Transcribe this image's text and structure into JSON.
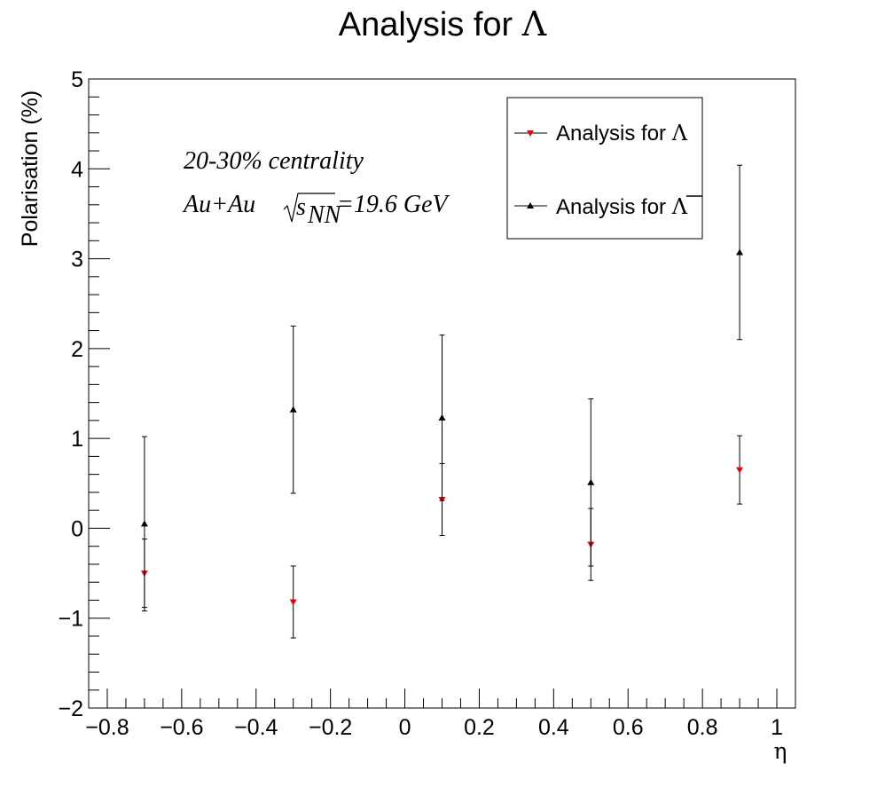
{
  "chart_data": {
    "type": "scatter",
    "title_prefix": "Analysis for ",
    "title_symbol": "Λ",
    "xlabel": "η",
    "ylabel": "Polarisation (%)",
    "xlim": [
      -0.85,
      1.05
    ],
    "ylim": [
      -2,
      5
    ],
    "x_ticks": [
      -0.8,
      -0.6,
      -0.4,
      -0.2,
      0,
      0.2,
      0.4,
      0.6,
      0.8,
      1
    ],
    "x_tick_labels": [
      "−0.8",
      "−0.6",
      "−0.4",
      "−0.2",
      "0",
      "0.2",
      "0.4",
      "0.6",
      "0.8",
      "1"
    ],
    "y_ticks": [
      -2,
      -1,
      0,
      1,
      2,
      3,
      4,
      5
    ],
    "y_tick_labels": [
      "−2",
      "−1",
      "0",
      "1",
      "2",
      "3",
      "4",
      "5"
    ],
    "annotations": {
      "centrality": "20-30% centrality",
      "system": "Au+Au",
      "sqrt_var": "s",
      "sqrt_sub": "NN",
      "energy": "=19.6 GeV"
    },
    "legend_position": "top-right",
    "series": [
      {
        "name_prefix": "Analysis for ",
        "name_symbol": "Λ",
        "bar": false,
        "color": "#e8000b",
        "marker": "triangle-down",
        "x": [
          -0.7,
          -0.3,
          0.1,
          0.5,
          0.9
        ],
        "y": [
          -0.5,
          -0.82,
          0.32,
          -0.18,
          0.65
        ],
        "err": [
          0.38,
          0.4,
          0.4,
          0.4,
          0.38
        ]
      },
      {
        "name_prefix": "Analysis for ",
        "name_symbol": "Λ",
        "bar": true,
        "color": "#000000",
        "marker": "triangle-up",
        "x": [
          -0.7,
          -0.3,
          0.1,
          0.5,
          0.9
        ],
        "y": [
          0.05,
          1.32,
          1.23,
          0.51,
          3.07
        ],
        "err": [
          0.97,
          0.93,
          0.92,
          0.93,
          0.97
        ]
      }
    ]
  }
}
